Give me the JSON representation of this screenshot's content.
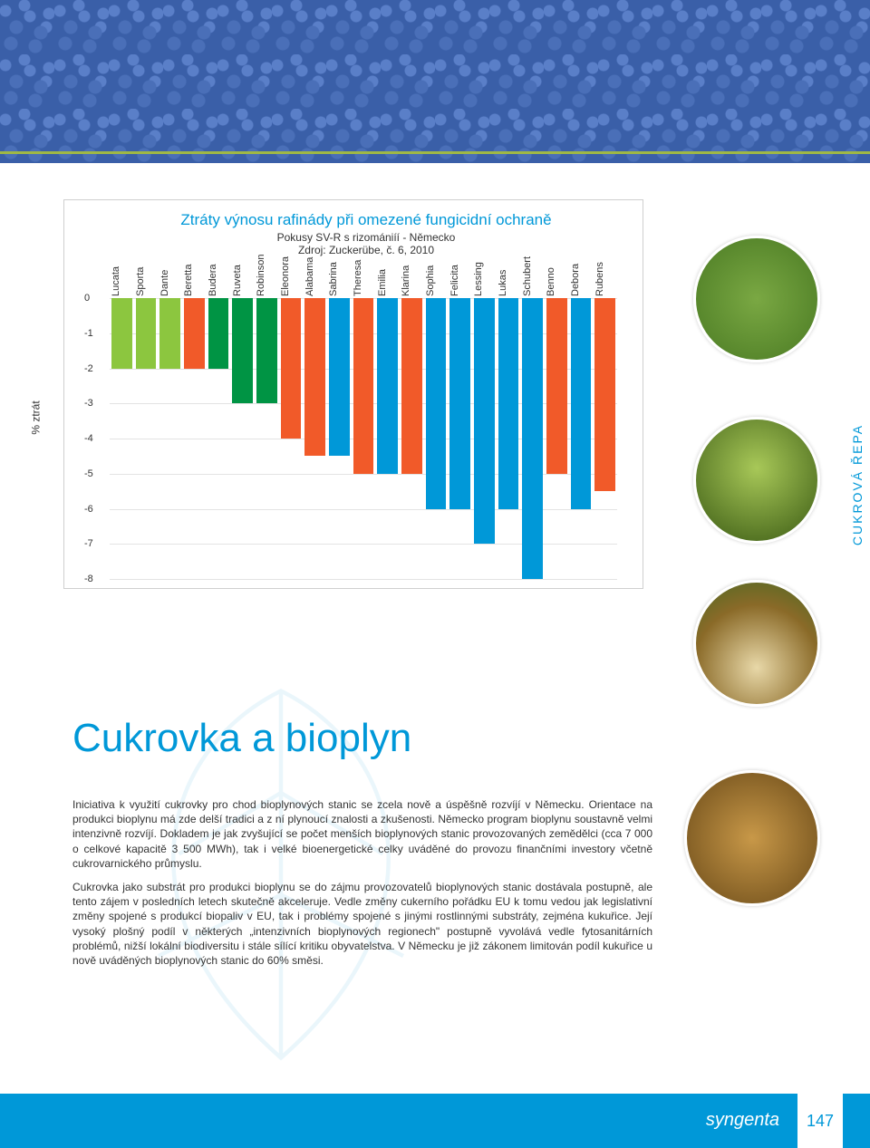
{
  "header": {
    "background_color": "#3a5fa8"
  },
  "chart": {
    "type": "bar",
    "title": "Ztráty výnosu rafinády při omezené fungicidní ochraně",
    "subtitle1": "Pokusy SV-R s rizomániíí - Německo",
    "subtitle2": "Zdroj: Zuckerübe, č. 6, 2010",
    "title_color": "#0098d8",
    "title_fontsize": 17,
    "subtitle_fontsize": 12,
    "y_label": "% ztrát",
    "ylim": [
      -8,
      0
    ],
    "ytick_step": 1,
    "grid_color": "#e3e3e3",
    "background_color": "#ffffff",
    "bar_width_ratio": 0.75,
    "categories": [
      "Lucata",
      "Sporta",
      "Dante",
      "Beretta",
      "Budera",
      "Ruveta",
      "Robinson",
      "Eleonora",
      "Alabama",
      "Sabrina",
      "Theresa",
      "Emilia",
      "Klarina",
      "Sophia",
      "Felicita",
      "Lessing",
      "Lukas",
      "Schubert",
      "Benno",
      "Debora",
      "Rubens"
    ],
    "values": [
      -2,
      -2,
      -2,
      -2,
      -2,
      -3,
      -3,
      -4,
      -4.5,
      -4.5,
      -5,
      -5,
      -5,
      -6,
      -6,
      -7,
      -6,
      -8,
      -5,
      -6,
      -5.5
    ],
    "bar_colors": [
      "#8cc63f",
      "#8cc63f",
      "#8cc63f",
      "#f15a29",
      "#009444",
      "#009444",
      "#009444",
      "#f15a29",
      "#f15a29",
      "#0098d8",
      "#f15a29",
      "#0098d8",
      "#f15a29",
      "#0098d8",
      "#0098d8",
      "#0098d8",
      "#0098d8",
      "#0098d8",
      "#f15a29",
      "#0098d8",
      "#f15a29"
    ],
    "label_fontsize": 11
  },
  "side_tab": {
    "text": "CUKROVÁ ŘEPA",
    "color": "#0098d8"
  },
  "section": {
    "title": "Cukrovka a  bioplyn",
    "title_color": "#0098d8",
    "title_fontsize": 44,
    "paragraphs": [
      "Iniciativa k využití cukrovky pro chod bioplynových stanic se zcela nově a úspěšně rozvíjí v Německu. Orientace na produkci bioplynu má zde delší tradici a z ní plynoucí znalosti a zkušenosti. Německo program bioplynu soustavně velmi intenzivně rozvíjí. Dokladem je jak zvyšující se počet menších bioplynových stanic provozovaných zemědělci (cca 7 000 o celkové kapacitě 3 500 MWh), tak i velké bioenergetické celky uváděné do provozu finančními investory včetně cukrovarnického průmyslu.",
      "Cukrovka jako substrát pro produkci bioplynu se do zájmu provozovatelů bioplynových stanic dostávala postupně, ale tento zájem v posledních letech skutečně akceleruje. Vedle změny cukerního pořádku EU k tomu vedou jak legislativní změny spojené s produkcí biopaliv v EU, tak i problémy spojené s jinými rostlinnými substráty, zejména kukuřice. Její vysoký plošný podíl v některých „intenzivních bioplynových regionech\" postupně vyvolává vedle fytosanitárních problémů, nižší lokální biodiversitu i stále sílící kritiku obyvatelstva. V Německu je již zákonem limitován podíl kukuřice u nově uváděných bioplynových stanic do 60% směsi."
    ],
    "body_fontsize": 12,
    "body_color": "#333333"
  },
  "footer": {
    "logo_text": "syngenta",
    "page_number": "147",
    "background_color": "#0098d8",
    "text_color": "#ffffff"
  }
}
